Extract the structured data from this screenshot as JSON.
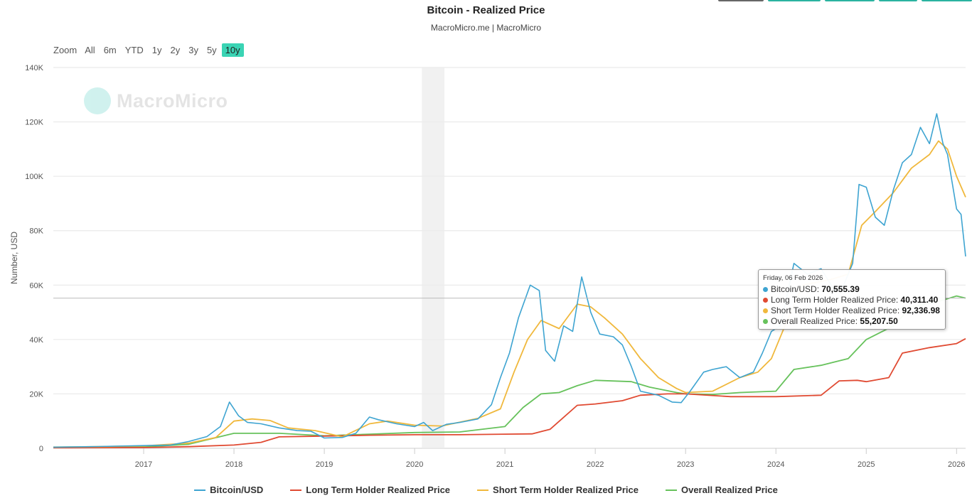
{
  "chart_data": {
    "type": "line",
    "title": "Bitcoin - Realized Price",
    "subtitle": "MacroMicro.me | MacroMicro",
    "ylabel": "Number, USD",
    "xlabel": "",
    "ylim": [
      0,
      140000
    ],
    "xlim": [
      2016.0,
      2026.1
    ],
    "y_ticks": [
      "0",
      "20K",
      "40K",
      "60K",
      "80K",
      "100K",
      "120K",
      "140K"
    ],
    "x_ticks": [
      "2017",
      "2018",
      "2019",
      "2020",
      "2021",
      "2022",
      "2023",
      "2024",
      "2025",
      "2026"
    ],
    "grid": true,
    "legend_position": "bottom",
    "recession_band": [
      2020.08,
      2020.33
    ],
    "series": [
      {
        "name": "Bitcoin/USD",
        "color": "#3ea4d1",
        "x": [
          2016.0,
          2016.5,
          2017.0,
          2017.3,
          2017.5,
          2017.7,
          2017.85,
          2017.95,
          2018.05,
          2018.15,
          2018.3,
          2018.5,
          2018.7,
          2018.85,
          2019.0,
          2019.2,
          2019.35,
          2019.5,
          2019.6,
          2019.8,
          2020.0,
          2020.1,
          2020.2,
          2020.35,
          2020.5,
          2020.7,
          2020.85,
          2020.95,
          2021.05,
          2021.15,
          2021.28,
          2021.38,
          2021.45,
          2021.55,
          2021.65,
          2021.75,
          2021.85,
          2021.95,
          2022.05,
          2022.2,
          2022.3,
          2022.4,
          2022.5,
          2022.7,
          2022.85,
          2022.95,
          2023.05,
          2023.2,
          2023.3,
          2023.45,
          2023.6,
          2023.75,
          2023.85,
          2023.95,
          2024.05,
          2024.2,
          2024.35,
          2024.5,
          2024.65,
          2024.75,
          2024.85,
          2024.92,
          2025.0,
          2025.1,
          2025.2,
          2025.3,
          2025.4,
          2025.5,
          2025.6,
          2025.7,
          2025.78,
          2025.85,
          2025.9,
          2025.95,
          2026.0,
          2026.05,
          2026.1
        ],
        "values": [
          430,
          650,
          1000,
          1200,
          2500,
          4300,
          8000,
          17000,
          12000,
          9500,
          9000,
          7500,
          6500,
          6300,
          3800,
          4000,
          5500,
          11500,
          10500,
          9000,
          8000,
          9500,
          6500,
          8800,
          9500,
          10800,
          16000,
          26000,
          35000,
          48000,
          60000,
          58000,
          36000,
          32000,
          45000,
          43000,
          63000,
          50000,
          42000,
          41000,
          38000,
          30000,
          21000,
          19500,
          17000,
          16800,
          21000,
          28000,
          29000,
          30000,
          26000,
          28000,
          35000,
          43000,
          45000,
          68000,
          64000,
          66000,
          58000,
          60000,
          68000,
          97000,
          96000,
          85000,
          82000,
          95000,
          105000,
          108000,
          118000,
          112000,
          123000,
          112000,
          108000,
          98000,
          88000,
          86000,
          70555.39
        ]
      },
      {
        "name": "Long Term Holder Realized Price",
        "color": "#e04a32",
        "x": [
          2016.0,
          2017.0,
          2017.5,
          2018.0,
          2018.3,
          2018.5,
          2019.0,
          2019.5,
          2020.0,
          2020.5,
          2021.0,
          2021.3,
          2021.5,
          2021.8,
          2022.0,
          2022.3,
          2022.5,
          2022.8,
          2023.0,
          2023.5,
          2024.0,
          2024.5,
          2024.7,
          2024.9,
          2025.0,
          2025.25,
          2025.4,
          2025.7,
          2026.0,
          2026.1
        ],
        "values": [
          200,
          250,
          600,
          1200,
          2200,
          4200,
          4500,
          4800,
          5000,
          5000,
          5200,
          5300,
          7000,
          15800,
          16300,
          17500,
          19500,
          20000,
          20000,
          19000,
          19000,
          19500,
          24800,
          25000,
          24500,
          26000,
          35000,
          37000,
          38500,
          40311.4
        ]
      },
      {
        "name": "Short Term Holder Realized Price",
        "color": "#f0b83c",
        "x": [
          2016.0,
          2016.5,
          2017.0,
          2017.5,
          2017.8,
          2018.0,
          2018.2,
          2018.4,
          2018.6,
          2018.9,
          2019.2,
          2019.5,
          2019.7,
          2020.0,
          2020.3,
          2020.7,
          2020.95,
          2021.1,
          2021.25,
          2021.4,
          2021.6,
          2021.8,
          2021.95,
          2022.1,
          2022.3,
          2022.5,
          2022.7,
          2022.9,
          2023.0,
          2023.3,
          2023.6,
          2023.8,
          2023.95,
          2024.1,
          2024.3,
          2024.6,
          2024.8,
          2024.95,
          2025.1,
          2025.3,
          2025.5,
          2025.7,
          2025.8,
          2025.9,
          2026.0,
          2026.1
        ],
        "values": [
          450,
          600,
          900,
          1900,
          4000,
          10000,
          10800,
          10200,
          7500,
          6500,
          4200,
          9000,
          10000,
          8500,
          8200,
          11000,
          14500,
          28000,
          40000,
          47000,
          44000,
          53000,
          52000,
          48000,
          42000,
          33000,
          26000,
          22000,
          20500,
          21000,
          26000,
          28000,
          33000,
          45000,
          60000,
          62000,
          64000,
          82000,
          87000,
          94000,
          103000,
          108000,
          113000,
          110000,
          100000,
          92336.98
        ]
      },
      {
        "name": "Overall Realized Price",
        "color": "#67c25c",
        "x": [
          2016.0,
          2017.0,
          2017.5,
          2018.0,
          2018.5,
          2019.0,
          2019.5,
          2020.0,
          2020.5,
          2021.0,
          2021.2,
          2021.4,
          2021.6,
          2021.8,
          2022.0,
          2022.4,
          2022.6,
          2022.9,
          2023.0,
          2023.3,
          2023.6,
          2024.0,
          2024.2,
          2024.5,
          2024.8,
          2025.0,
          2025.3,
          2025.5,
          2025.8,
          2026.0,
          2026.1
        ],
        "values": [
          350,
          500,
          1500,
          5500,
          5500,
          4600,
          5200,
          5800,
          6000,
          8000,
          15000,
          20000,
          20500,
          23000,
          25000,
          24500,
          22500,
          20500,
          20000,
          19800,
          20500,
          21000,
          29000,
          30500,
          33000,
          40000,
          45000,
          52000,
          54000,
          56000,
          55207.5
        ]
      }
    ]
  },
  "zoom": {
    "label": "Zoom",
    "buttons": [
      "All",
      "6m",
      "YTD",
      "1y",
      "2y",
      "3y",
      "5y",
      "10y"
    ],
    "active": "10y"
  },
  "watermark": "MacroMicro",
  "tooltip": {
    "date": "Friday, 06 Feb 2026",
    "rows": [
      {
        "label": "Bitcoin/USD:",
        "value": "70,555.39",
        "color": "#3ea4d1"
      },
      {
        "label": "Long Term Holder Realized Price:",
        "value": "40,311.40",
        "color": "#e04a32"
      },
      {
        "label": "Short Term Holder Realized Price:",
        "value": "92,336.98",
        "color": "#f0b83c"
      },
      {
        "label": "Overall Realized Price:",
        "value": "55,207.50",
        "color": "#67c25c"
      }
    ]
  }
}
